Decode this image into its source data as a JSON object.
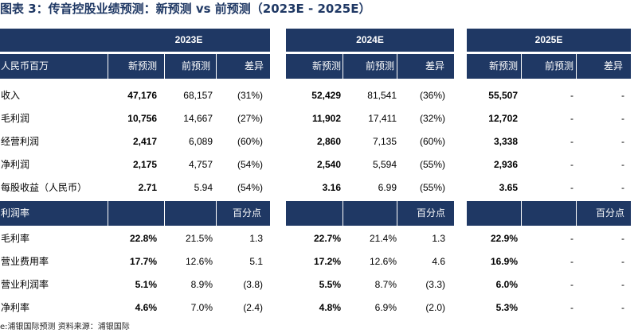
{
  "title": "图表 3：传音控股业绩预测：新预测 vs 前预测（2023E - 2025E）",
  "header_label": "人民币百万",
  "years": [
    "2023E",
    "2024E",
    "2025E"
  ],
  "col_headers": [
    "新预测",
    "前预测",
    "差异"
  ],
  "section2_label": "利润率",
  "section2_unit": "百分点",
  "source": "e:浦银国际预测   资料来源：浦银国际",
  "rows": [
    {
      "label": "收入",
      "v": [
        "47,176",
        "68,157",
        "(31%)",
        "52,429",
        "81,541",
        "(36%)",
        "55,507",
        "-",
        "-"
      ]
    },
    {
      "label": "毛利润",
      "v": [
        "10,756",
        "14,667",
        "(27%)",
        "11,902",
        "17,411",
        "(32%)",
        "12,702",
        "-",
        "-"
      ]
    },
    {
      "label": "经营利润",
      "v": [
        "2,417",
        "6,089",
        "(60%)",
        "2,860",
        "7,135",
        "(60%)",
        "3,338",
        "-",
        "-"
      ]
    },
    {
      "label": "净利润",
      "v": [
        "2,175",
        "4,757",
        "(54%)",
        "2,540",
        "5,594",
        "(55%)",
        "2,936",
        "-",
        "-"
      ]
    },
    {
      "label": "每股收益（人民币）",
      "v": [
        "2.71",
        "5.94",
        "(54%)",
        "3.16",
        "6.99",
        "(55%)",
        "3.65",
        "-",
        "-"
      ]
    }
  ],
  "rows2": [
    {
      "label": "毛利率",
      "v": [
        "22.8%",
        "21.5%",
        "1.3",
        "22.7%",
        "21.4%",
        "1.3",
        "22.9%",
        "-",
        "-"
      ]
    },
    {
      "label": "营业费用率",
      "v": [
        "17.7%",
        "12.6%",
        "5.1",
        "17.2%",
        "12.6%",
        "4.6",
        "16.9%",
        "-",
        "-"
      ]
    },
    {
      "label": "营业利润率",
      "v": [
        "5.1%",
        "8.9%",
        "(3.8)",
        "5.5%",
        "8.7%",
        "(3.3)",
        "6.0%",
        "-",
        "-"
      ]
    },
    {
      "label": "净利率",
      "v": [
        "4.6%",
        "7.0%",
        "(2.4)",
        "4.8%",
        "6.9%",
        "(2.0)",
        "5.3%",
        "-",
        "-"
      ]
    }
  ]
}
